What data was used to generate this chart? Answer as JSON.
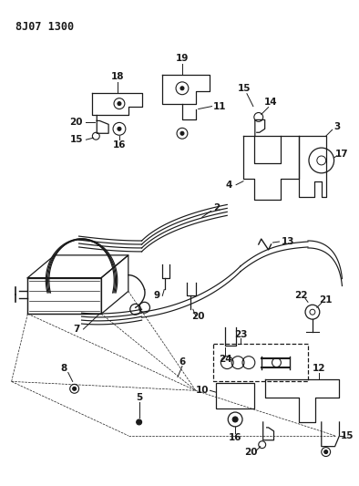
{
  "title": "8J07 1300",
  "bg_color": "#ffffff",
  "line_color": "#1a1a1a",
  "figsize": [
    3.94,
    5.33
  ],
  "dpi": 100
}
